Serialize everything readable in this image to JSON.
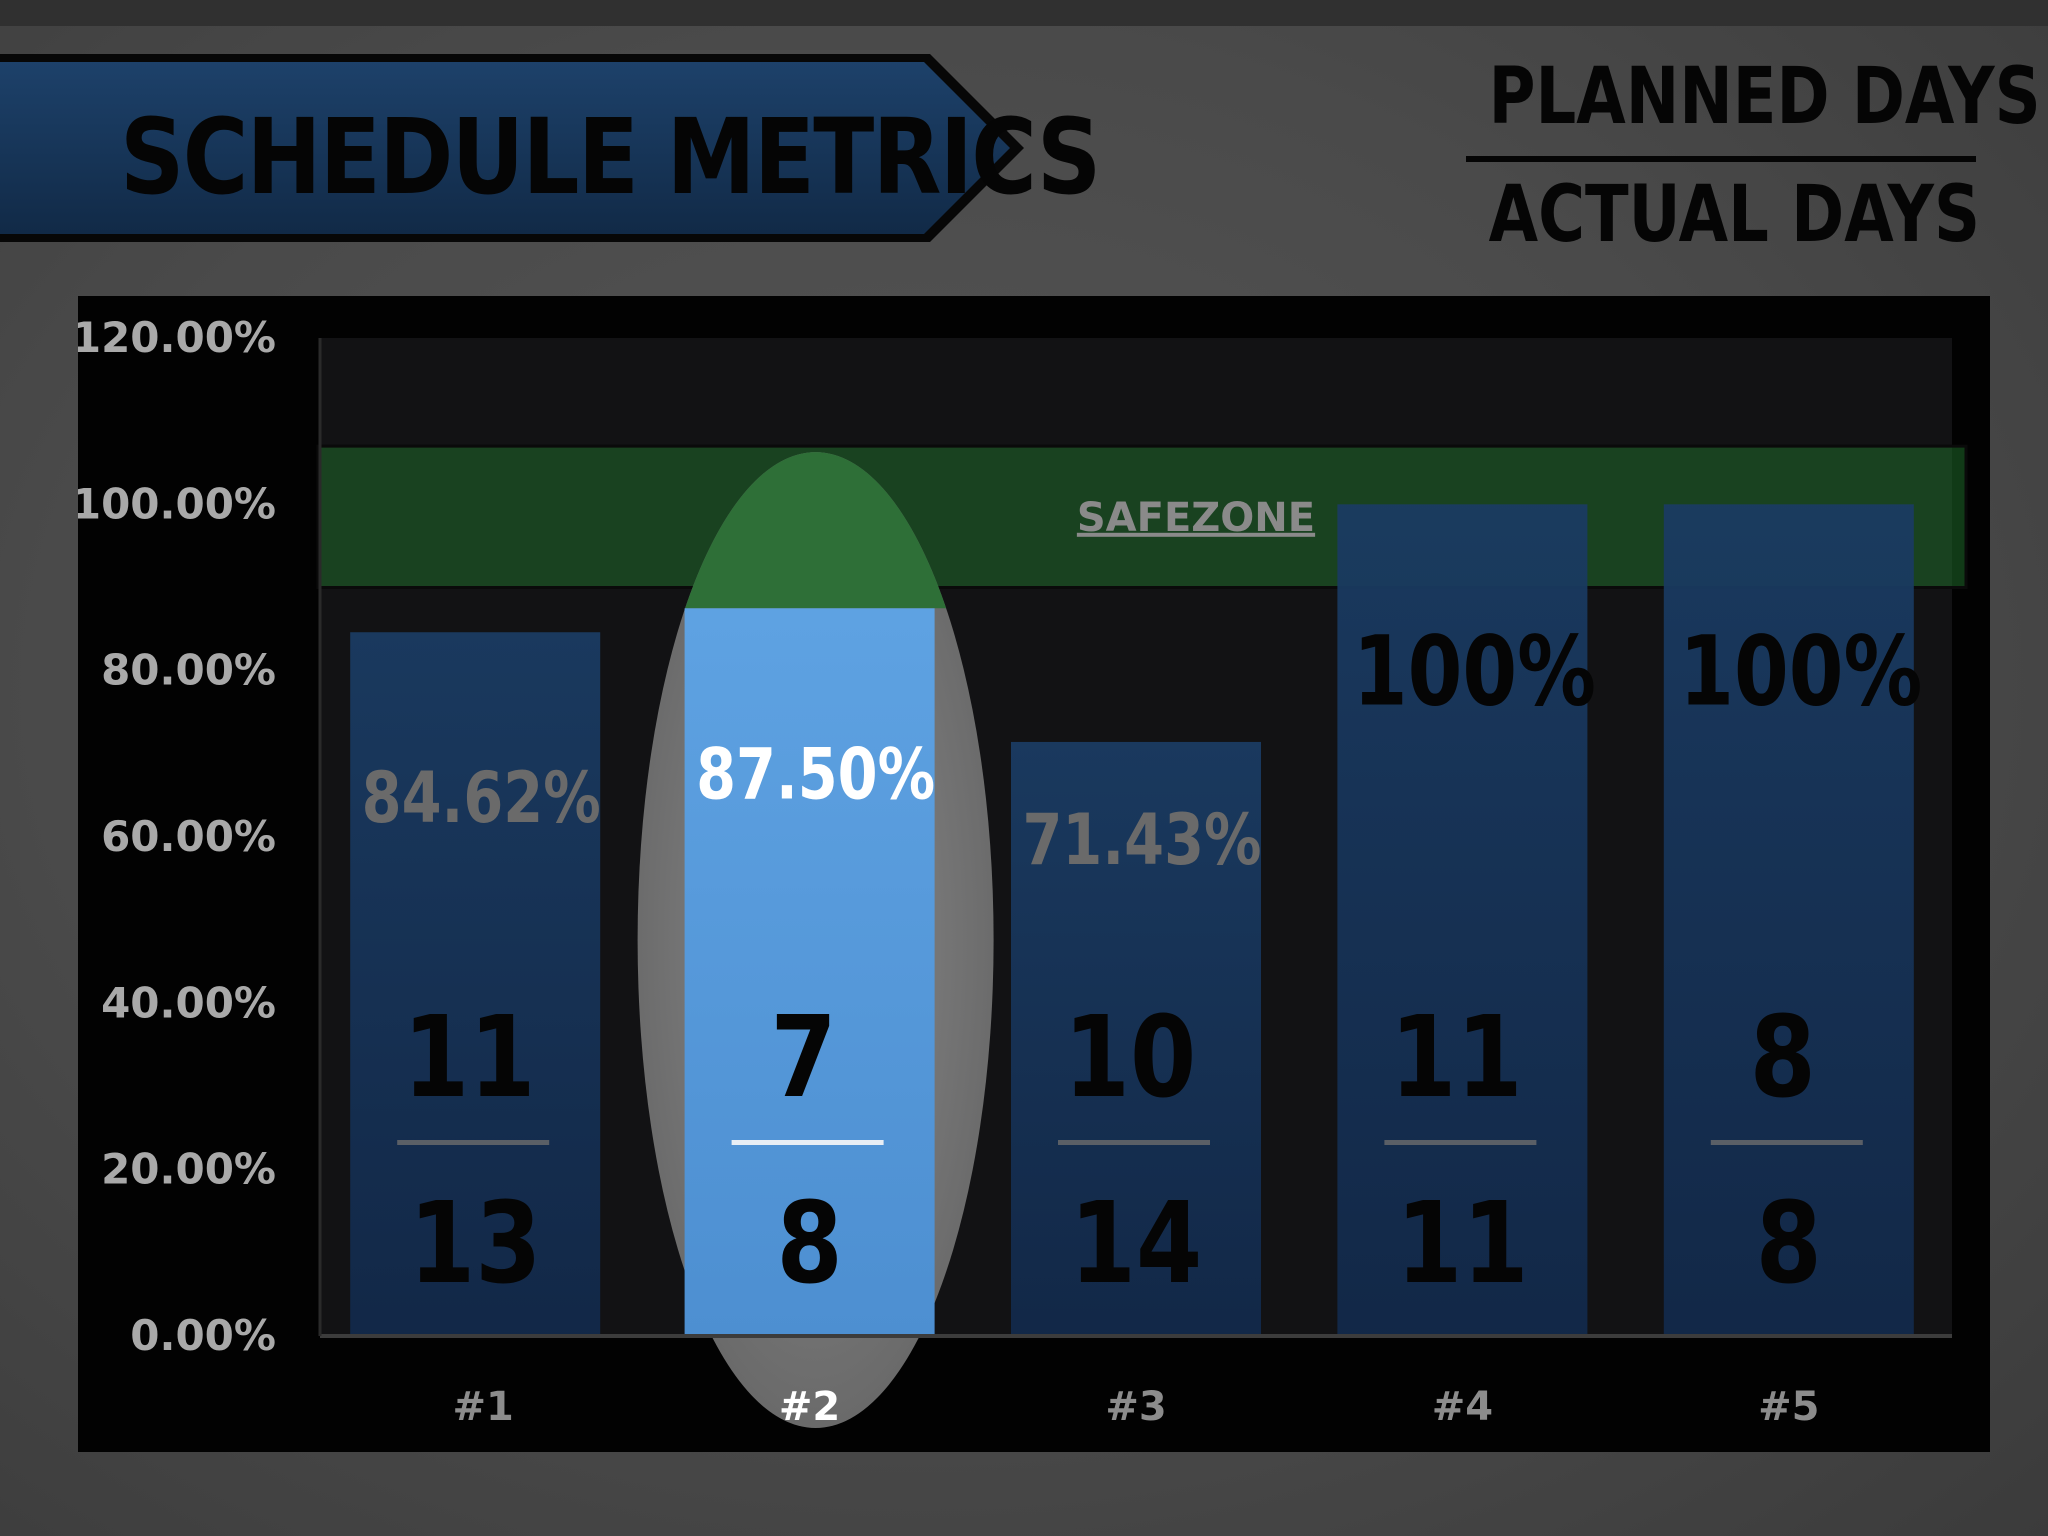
{
  "header": {
    "title": "SCHEDULE METRICS",
    "legend_numerator": "PLANNED DAYS",
    "legend_denominator": "ACTUAL DAYS"
  },
  "colors": {
    "bar_default": "#16355a",
    "bar_selected": "#5599d9",
    "safezone": "#1f6a2a",
    "highlight": "#2e6f37",
    "panel": "#020202",
    "banner": "#16355a"
  },
  "chart_data": {
    "type": "bar",
    "title": "",
    "categories": [
      "#1",
      "#2",
      "#3",
      "#4",
      "#5"
    ],
    "series": [
      {
        "values": [
          84.62,
          87.5,
          71.43,
          100,
          100
        ]
      }
    ],
    "value_labels": [
      "84.62%",
      "87.50%",
      "71.43%",
      "100%",
      "100%"
    ],
    "planned_days": [
      "11",
      "7",
      "10",
      "11",
      "8"
    ],
    "actual_days": [
      "13",
      "8",
      "14",
      "11",
      "8"
    ],
    "selected_index": 1,
    "ylim": [
      0,
      120
    ],
    "yticks": [
      "0.00%",
      "20.00%",
      "40.00%",
      "60.00%",
      "80.00%",
      "100.00%",
      "120.00%"
    ],
    "ytick_values": [
      0,
      20,
      40,
      60,
      80,
      100,
      120
    ],
    "safezone": {
      "label": "SAFEZONE",
      "from": 90,
      "to": 107
    },
    "grid": false,
    "legend": "none"
  }
}
